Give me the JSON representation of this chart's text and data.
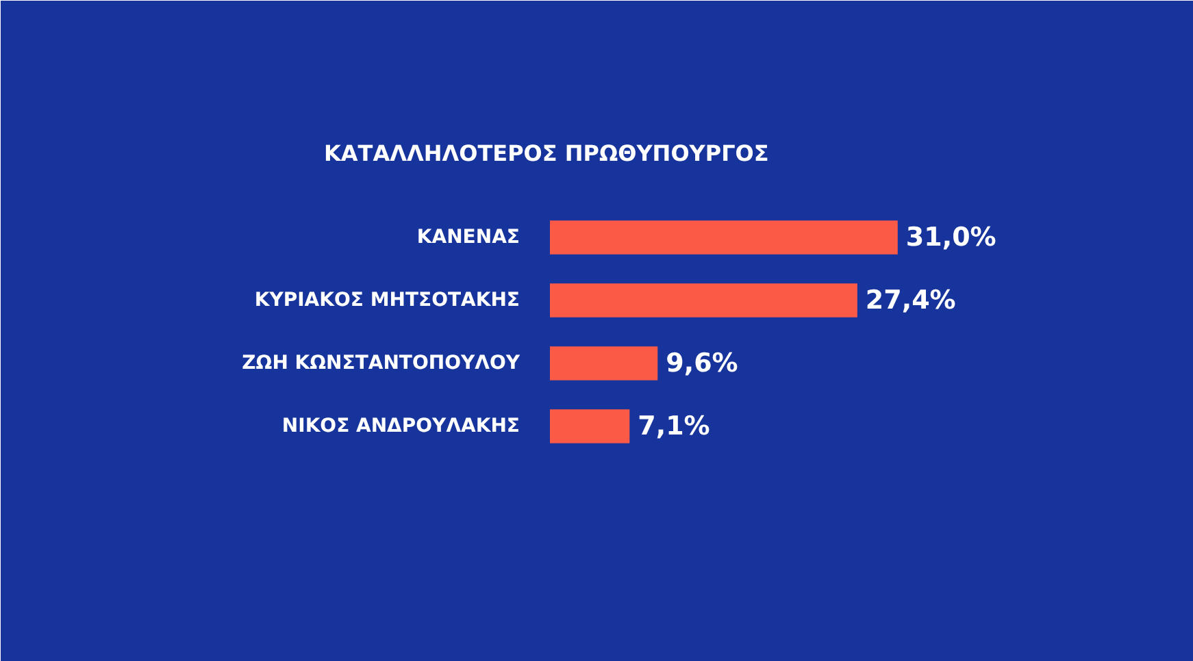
{
  "chart_data": {
    "type": "bar",
    "orientation": "horizontal",
    "title": "ΚΑΤΑΛΛΗΛΟΤΕΡΟΣ ΠΡΩΘΥΠΟΥΡΓΟΣ",
    "categories": [
      "ΚΑΝΕΝΑΣ",
      "ΚΥΡΙΑΚΟΣ ΜΗΤΣΟΤΑΚΗΣ",
      "ΖΩΗ ΚΩΝΣΤΑΝΤΟΠΟΥΛΟΥ",
      "ΝΙΚΟΣ ΑΝΔΡΟΥΛΑΚΗΣ"
    ],
    "values": [
      31.0,
      27.4,
      9.6,
      7.1
    ],
    "value_labels": [
      "31,0%",
      "27,4%",
      "9,6%",
      "7,1%"
    ],
    "color": "#fb5a47",
    "xlim": [
      0,
      42
    ],
    "tick_labels": "y"
  }
}
